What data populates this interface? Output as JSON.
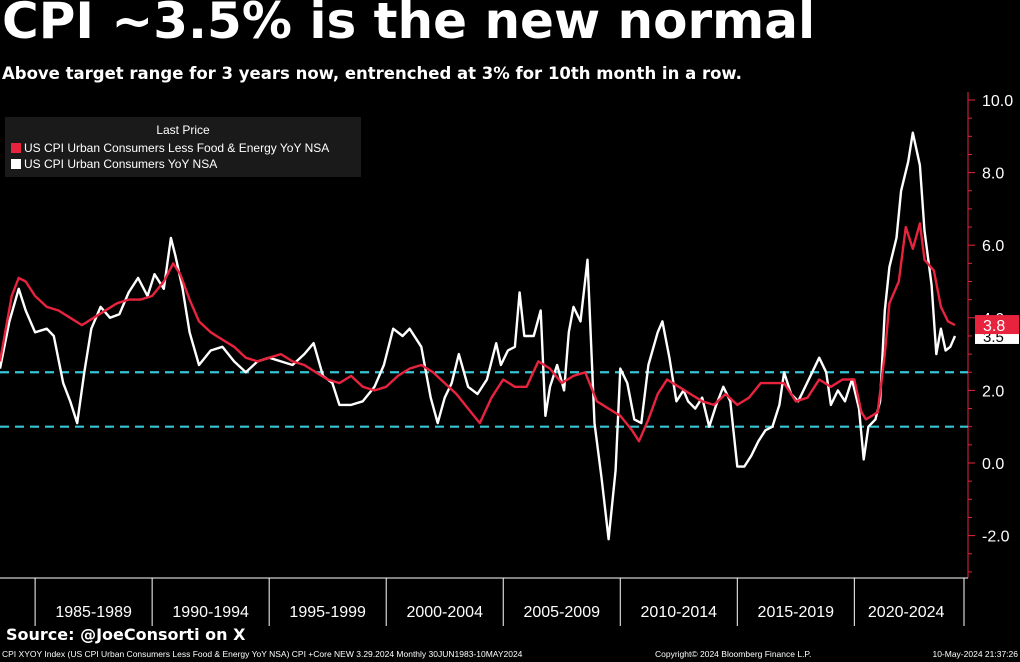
{
  "title": "CPI ~3.5% is the new normal",
  "subtitle": "Above target range for 3 years now, entrenched at 3% for 10th month in a row.",
  "source": "Source: @JoeConsorti on X",
  "footer": {
    "left": "CPI XYOY Index (US CPI Urban Consumers Less Food & Energy YoY NSA) CPI +Core NEW 3.29.2024  Monthly 30JUN1983-10MAY2024",
    "middle": "Copyright© 2024 Bloomberg Finance L.P.",
    "right": "10-May-2024 21:37:26"
  },
  "colors": {
    "core": "#e8233e",
    "headline": "#ffffff",
    "bands": "#35c5d5",
    "background": "#000000"
  },
  "chart_data": {
    "type": "line",
    "title": "CPI ~3.5% is the new normal",
    "subtitle": "Above target range for 3 years now, entrenched at 3% for 10th month in a row.",
    "legend": {
      "title": "Last Price",
      "placement": "top-left"
    },
    "xlim": [
      1983.5,
      2024.4
    ],
    "ylim": [
      -3,
      10.3
    ],
    "yticks": [
      -2.0,
      0.0,
      2.0,
      4.0,
      6.0,
      8.0,
      10.0
    ],
    "ytick_labels": [
      "-2.0",
      "0.0",
      "2.0",
      "4.0",
      "6.0",
      "8.0",
      "10.0"
    ],
    "x_periods": [
      {
        "label": "1985-1989",
        "start": 1985,
        "end": 1990
      },
      {
        "label": "1990-1994",
        "start": 1990,
        "end": 1995
      },
      {
        "label": "1995-1999",
        "start": 1995,
        "end": 2000
      },
      {
        "label": "2000-2004",
        "start": 2000,
        "end": 2005
      },
      {
        "label": "2005-2009",
        "start": 2005,
        "end": 2010
      },
      {
        "label": "2010-2014",
        "start": 2010,
        "end": 2015
      },
      {
        "label": "2015-2019",
        "start": 2015,
        "end": 2020
      },
      {
        "label": "2020-2024",
        "start": 2020,
        "end": 2025
      }
    ],
    "reference_lines": [
      2.5,
      1.0
    ],
    "series": [
      {
        "name": "US CPI Urban Consumers Less Food & Energy YoY NSA",
        "color": "#e8233e",
        "last_value": "3.8",
        "points": [
          [
            1983.5,
            2.8
          ],
          [
            1984.0,
            4.6
          ],
          [
            1984.3,
            5.1
          ],
          [
            1984.6,
            5.0
          ],
          [
            1985.0,
            4.6
          ],
          [
            1985.5,
            4.3
          ],
          [
            1986.0,
            4.2
          ],
          [
            1986.5,
            4.0
          ],
          [
            1987.0,
            3.8
          ],
          [
            1987.5,
            4.0
          ],
          [
            1988.0,
            4.2
          ],
          [
            1988.5,
            4.4
          ],
          [
            1989.0,
            4.5
          ],
          [
            1989.5,
            4.5
          ],
          [
            1990.0,
            4.6
          ],
          [
            1990.5,
            5.0
          ],
          [
            1990.9,
            5.5
          ],
          [
            1991.2,
            5.2
          ],
          [
            1991.6,
            4.5
          ],
          [
            1992.0,
            3.9
          ],
          [
            1992.5,
            3.6
          ],
          [
            1993.0,
            3.4
          ],
          [
            1993.5,
            3.2
          ],
          [
            1994.0,
            2.9
          ],
          [
            1994.5,
            2.8
          ],
          [
            1995.0,
            2.9
          ],
          [
            1995.5,
            3.0
          ],
          [
            1996.0,
            2.8
          ],
          [
            1996.5,
            2.7
          ],
          [
            1997.0,
            2.5
          ],
          [
            1997.5,
            2.3
          ],
          [
            1998.0,
            2.2
          ],
          [
            1998.5,
            2.4
          ],
          [
            1999.0,
            2.1
          ],
          [
            1999.5,
            2.0
          ],
          [
            2000.0,
            2.1
          ],
          [
            2000.5,
            2.4
          ],
          [
            2001.0,
            2.6
          ],
          [
            2001.5,
            2.7
          ],
          [
            2002.0,
            2.5
          ],
          [
            2002.5,
            2.2
          ],
          [
            2003.0,
            1.9
          ],
          [
            2003.5,
            1.5
          ],
          [
            2004.0,
            1.1
          ],
          [
            2004.5,
            1.8
          ],
          [
            2005.0,
            2.3
          ],
          [
            2005.5,
            2.1
          ],
          [
            2006.0,
            2.1
          ],
          [
            2006.5,
            2.8
          ],
          [
            2007.0,
            2.6
          ],
          [
            2007.5,
            2.2
          ],
          [
            2008.0,
            2.4
          ],
          [
            2008.5,
            2.5
          ],
          [
            2009.0,
            1.7
          ],
          [
            2009.5,
            1.5
          ],
          [
            2010.0,
            1.3
          ],
          [
            2010.5,
            0.9
          ],
          [
            2010.8,
            0.6
          ],
          [
            2011.2,
            1.2
          ],
          [
            2011.6,
            1.9
          ],
          [
            2012.0,
            2.3
          ],
          [
            2012.5,
            2.1
          ],
          [
            2013.0,
            1.9
          ],
          [
            2013.5,
            1.7
          ],
          [
            2014.0,
            1.6
          ],
          [
            2014.5,
            1.9
          ],
          [
            2015.0,
            1.6
          ],
          [
            2015.5,
            1.8
          ],
          [
            2016.0,
            2.2
          ],
          [
            2016.5,
            2.2
          ],
          [
            2017.0,
            2.2
          ],
          [
            2017.5,
            1.7
          ],
          [
            2018.0,
            1.8
          ],
          [
            2018.5,
            2.3
          ],
          [
            2019.0,
            2.1
          ],
          [
            2019.5,
            2.3
          ],
          [
            2020.0,
            2.3
          ],
          [
            2020.3,
            1.4
          ],
          [
            2020.5,
            1.2
          ],
          [
            2021.0,
            1.4
          ],
          [
            2021.3,
            3.0
          ],
          [
            2021.5,
            4.4
          ],
          [
            2021.9,
            5.0
          ],
          [
            2022.2,
            6.5
          ],
          [
            2022.5,
            5.9
          ],
          [
            2022.8,
            6.6
          ],
          [
            2023.0,
            5.6
          ],
          [
            2023.4,
            5.3
          ],
          [
            2023.7,
            4.3
          ],
          [
            2024.0,
            3.9
          ],
          [
            2024.3,
            3.8
          ]
        ]
      },
      {
        "name": "US CPI Urban Consumers YoY NSA",
        "color": "#ffffff",
        "last_value": "3.5",
        "points": [
          [
            1983.5,
            2.6
          ],
          [
            1983.9,
            3.9
          ],
          [
            1984.3,
            4.8
          ],
          [
            1984.6,
            4.2
          ],
          [
            1985.0,
            3.6
          ],
          [
            1985.5,
            3.7
          ],
          [
            1985.8,
            3.5
          ],
          [
            1986.2,
            2.2
          ],
          [
            1986.5,
            1.7
          ],
          [
            1986.8,
            1.1
          ],
          [
            1987.1,
            2.5
          ],
          [
            1987.4,
            3.7
          ],
          [
            1987.8,
            4.3
          ],
          [
            1988.2,
            4.0
          ],
          [
            1988.6,
            4.1
          ],
          [
            1989.0,
            4.7
          ],
          [
            1989.4,
            5.1
          ],
          [
            1989.8,
            4.6
          ],
          [
            1990.1,
            5.2
          ],
          [
            1990.5,
            4.8
          ],
          [
            1990.8,
            6.2
          ],
          [
            1991.0,
            5.7
          ],
          [
            1991.3,
            4.8
          ],
          [
            1991.6,
            3.6
          ],
          [
            1992.0,
            2.7
          ],
          [
            1992.5,
            3.1
          ],
          [
            1993.0,
            3.2
          ],
          [
            1993.5,
            2.8
          ],
          [
            1994.0,
            2.5
          ],
          [
            1994.5,
            2.8
          ],
          [
            1995.0,
            2.9
          ],
          [
            1995.5,
            2.8
          ],
          [
            1996.0,
            2.7
          ],
          [
            1996.5,
            3.0
          ],
          [
            1996.9,
            3.3
          ],
          [
            1997.3,
            2.4
          ],
          [
            1997.7,
            2.2
          ],
          [
            1998.0,
            1.6
          ],
          [
            1998.5,
            1.6
          ],
          [
            1999.0,
            1.7
          ],
          [
            1999.5,
            2.1
          ],
          [
            1999.9,
            2.7
          ],
          [
            2000.3,
            3.7
          ],
          [
            2000.7,
            3.5
          ],
          [
            2001.0,
            3.7
          ],
          [
            2001.5,
            3.2
          ],
          [
            2001.9,
            1.8
          ],
          [
            2002.2,
            1.1
          ],
          [
            2002.5,
            1.8
          ],
          [
            2002.8,
            2.2
          ],
          [
            2003.1,
            3.0
          ],
          [
            2003.5,
            2.1
          ],
          [
            2003.9,
            1.9
          ],
          [
            2004.3,
            2.3
          ],
          [
            2004.7,
            3.3
          ],
          [
            2004.9,
            2.7
          ],
          [
            2005.2,
            3.1
          ],
          [
            2005.5,
            3.2
          ],
          [
            2005.7,
            4.7
          ],
          [
            2005.9,
            3.5
          ],
          [
            2006.3,
            3.5
          ],
          [
            2006.6,
            4.2
          ],
          [
            2006.8,
            1.3
          ],
          [
            2007.0,
            2.1
          ],
          [
            2007.3,
            2.7
          ],
          [
            2007.6,
            2.0
          ],
          [
            2007.8,
            3.6
          ],
          [
            2008.0,
            4.3
          ],
          [
            2008.3,
            3.9
          ],
          [
            2008.6,
            5.6
          ],
          [
            2008.9,
            1.1
          ],
          [
            2009.2,
            -0.4
          ],
          [
            2009.5,
            -2.1
          ],
          [
            2009.8,
            -0.2
          ],
          [
            2010.0,
            2.6
          ],
          [
            2010.3,
            2.2
          ],
          [
            2010.6,
            1.2
          ],
          [
            2010.9,
            1.1
          ],
          [
            2011.2,
            2.7
          ],
          [
            2011.6,
            3.6
          ],
          [
            2011.8,
            3.9
          ],
          [
            2012.1,
            2.9
          ],
          [
            2012.4,
            1.7
          ],
          [
            2012.7,
            2.0
          ],
          [
            2012.9,
            1.7
          ],
          [
            2013.2,
            1.5
          ],
          [
            2013.5,
            1.8
          ],
          [
            2013.8,
            1.0
          ],
          [
            2014.1,
            1.6
          ],
          [
            2014.4,
            2.1
          ],
          [
            2014.7,
            1.7
          ],
          [
            2015.0,
            -0.1
          ],
          [
            2015.3,
            -0.1
          ],
          [
            2015.6,
            0.2
          ],
          [
            2015.9,
            0.6
          ],
          [
            2016.2,
            0.9
          ],
          [
            2016.5,
            1.0
          ],
          [
            2016.8,
            1.6
          ],
          [
            2017.0,
            2.5
          ],
          [
            2017.3,
            1.9
          ],
          [
            2017.6,
            1.7
          ],
          [
            2017.9,
            2.1
          ],
          [
            2018.2,
            2.5
          ],
          [
            2018.5,
            2.9
          ],
          [
            2018.8,
            2.5
          ],
          [
            2019.0,
            1.6
          ],
          [
            2019.3,
            2.0
          ],
          [
            2019.6,
            1.7
          ],
          [
            2019.9,
            2.3
          ],
          [
            2020.2,
            1.5
          ],
          [
            2020.4,
            0.1
          ],
          [
            2020.6,
            1.0
          ],
          [
            2020.9,
            1.2
          ],
          [
            2021.1,
            1.7
          ],
          [
            2021.3,
            4.2
          ],
          [
            2021.5,
            5.4
          ],
          [
            2021.8,
            6.2
          ],
          [
            2022.0,
            7.5
          ],
          [
            2022.3,
            8.3
          ],
          [
            2022.5,
            9.1
          ],
          [
            2022.8,
            8.2
          ],
          [
            2023.0,
            6.4
          ],
          [
            2023.3,
            4.9
          ],
          [
            2023.5,
            3.0
          ],
          [
            2023.7,
            3.7
          ],
          [
            2023.9,
            3.1
          ],
          [
            2024.1,
            3.2
          ],
          [
            2024.3,
            3.5
          ]
        ]
      }
    ]
  }
}
